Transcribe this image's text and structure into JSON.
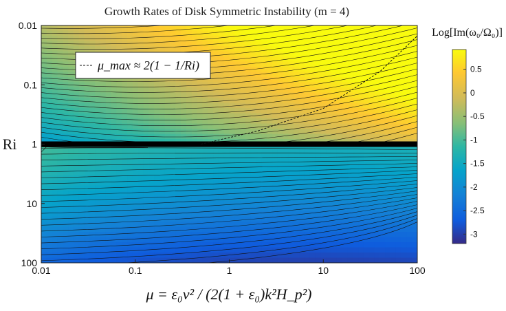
{
  "chart_data": {
    "type": "heatmap",
    "title": "Growth Rates of Disk Symmetric Instability (m = 4)",
    "xlabel": "μ = ε₀ν² / (2(1 + ε₀)k²H_p²)",
    "ylabel": "Ri",
    "x_scale": "log",
    "y_scale": "log",
    "y_reversed": true,
    "xlim": [
      0.01,
      100
    ],
    "ylim": [
      0.01,
      100
    ],
    "x_ticks": [
      "0.01",
      "0.1",
      "1",
      "10",
      "100"
    ],
    "y_ticks": [
      "0.01",
      "0.1",
      "1",
      "10",
      "100"
    ],
    "colorbar": {
      "label": "Log[Im(ω₀/Ω₀)]",
      "range": [
        -3.2,
        0.92
      ],
      "ticks": [
        "0.5",
        "0",
        "-0.5",
        "-1",
        "-1.5",
        "-2",
        "-2.5",
        "-3"
      ],
      "tick_values": [
        0.5,
        0,
        -0.5,
        -1,
        -1.5,
        -2,
        -2.5,
        -3
      ],
      "colormap": "parula",
      "colors": [
        "#352a87",
        "#0f5cdd",
        "#1481d6",
        "#06a4ca",
        "#2eb7a4",
        "#87bf77",
        "#d1bb59",
        "#fec832",
        "#f9fb0e"
      ]
    },
    "grid": false,
    "contours": true,
    "critical_line": {
      "Ri": 1,
      "description": "dense black contour band"
    },
    "dashed_curve": {
      "label": "μ_max ≈ 2(1 − 1/Ri)",
      "points": [
        [
          0.5,
          1
        ],
        [
          2,
          0.6
        ],
        [
          10,
          0.25
        ],
        [
          40,
          0.06
        ],
        [
          100,
          0.015
        ]
      ]
    },
    "legend_position": "top-left"
  }
}
